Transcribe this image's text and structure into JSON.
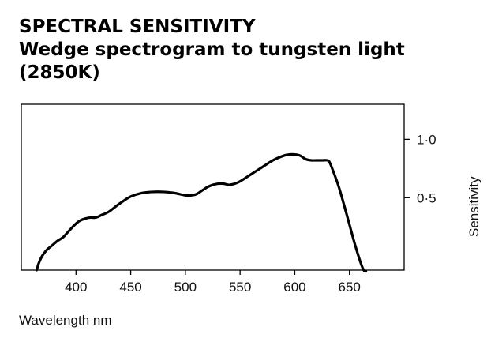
{
  "chart_data": {
    "type": "line",
    "title_lines": [
      "SPECTRAL SENSITIVITY",
      "Wedge spectrogram to tungsten light",
      "(2850K)"
    ],
    "xlabel": "Wavelength nm",
    "ylabel": "Sensitivity",
    "xlim": [
      350,
      700
    ],
    "ylim": [
      -0.12,
      1.3
    ],
    "x_ticks": [
      400,
      450,
      500,
      550,
      600,
      650
    ],
    "x_tick_labels": [
      "400",
      "450",
      "500",
      "550",
      "600",
      "650"
    ],
    "y_ticks": [
      0.5,
      1.0
    ],
    "y_tick_labels": [
      "0·5",
      "1·0"
    ],
    "y_axis_side": "right",
    "grid": false,
    "legend": "none",
    "line_color": "#000000",
    "series": [
      {
        "x": [
          364,
          366,
          369,
          373,
          378,
          383,
          388,
          393,
          398,
          403,
          408,
          413,
          418,
          423,
          430,
          437,
          443,
          450,
          460,
          470,
          480,
          490,
          500,
          505,
          510,
          515,
          520,
          525,
          530,
          535,
          540,
          545,
          550,
          560,
          570,
          580,
          590,
          595,
          600,
          605,
          610,
          615,
          620,
          625,
          630,
          632,
          635,
          640,
          645,
          650,
          655,
          660,
          663,
          665
        ],
        "y": [
          -0.12,
          -0.06,
          0.0,
          0.05,
          0.09,
          0.13,
          0.16,
          0.21,
          0.26,
          0.3,
          0.32,
          0.33,
          0.33,
          0.35,
          0.38,
          0.43,
          0.47,
          0.51,
          0.54,
          0.55,
          0.55,
          0.54,
          0.52,
          0.52,
          0.53,
          0.56,
          0.59,
          0.61,
          0.62,
          0.62,
          0.61,
          0.62,
          0.64,
          0.7,
          0.76,
          0.82,
          0.86,
          0.87,
          0.87,
          0.86,
          0.83,
          0.82,
          0.82,
          0.82,
          0.82,
          0.8,
          0.73,
          0.6,
          0.44,
          0.27,
          0.1,
          -0.05,
          -0.12,
          -0.13
        ]
      }
    ]
  }
}
